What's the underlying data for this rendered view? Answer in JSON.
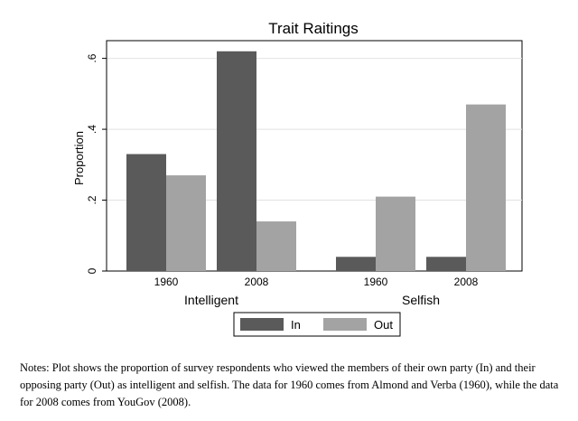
{
  "chart_data": {
    "type": "bar",
    "title": "Trait Raitings",
    "ylabel": "Proportion",
    "xlabel": "",
    "ylim": [
      0,
      0.65
    ],
    "yticks": [
      {
        "value": 0,
        "label": "0"
      },
      {
        "value": 0.2,
        "label": ".2"
      },
      {
        "value": 0.4,
        "label": ".4"
      },
      {
        "value": 0.6,
        "label": ".6"
      }
    ],
    "grid": true,
    "legend_position": "bottom",
    "groups": [
      {
        "label": "Intelligent",
        "categories": [
          "1960",
          "2008"
        ]
      },
      {
        "label": "Selfish",
        "categories": [
          "1960",
          "2008"
        ]
      }
    ],
    "series": [
      {
        "name": "In",
        "color": "#5a5a5a",
        "values": [
          [
            0.33,
            0.62
          ],
          [
            0.04,
            0.04
          ]
        ]
      },
      {
        "name": "Out",
        "color": "#a3a3a3",
        "values": [
          [
            0.27,
            0.14
          ],
          [
            0.21,
            0.47
          ]
        ]
      }
    ]
  },
  "notes": "Notes: Plot shows the proportion of survey respondents who viewed the members of their own party (In) and their opposing party (Out) as intelligent and selfish. The data for 1960 comes from Almond and Verba (1960), while the data for 2008 comes from YouGov (2008)."
}
